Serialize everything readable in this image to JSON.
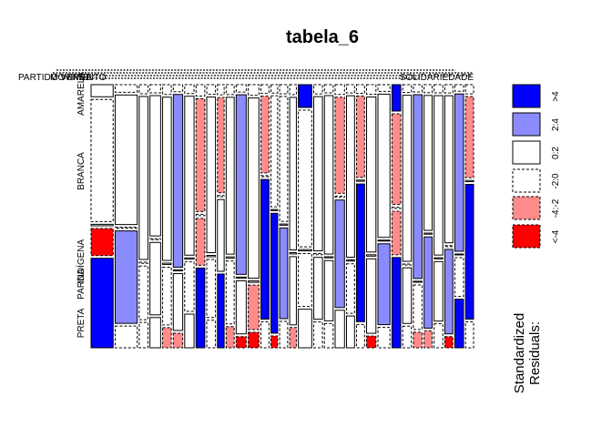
{
  "chart_data": {
    "type": "mosaic",
    "title": "tabela_6",
    "row_labels": [
      "AMARELA",
      "BRANCA",
      "INDÍGENA",
      "PARDA",
      "PRETA"
    ],
    "col_labels_visible": [
      "PARTIDO VERDE",
      "MOVIMENTO",
      "SOLIDARIEDADE"
    ],
    "row_proportions": [
      0.04,
      0.58,
      0.005,
      0.25,
      0.125
    ],
    "legend": {
      "title_line1": "Standardized",
      "title_line2": "Residuals:",
      "ranges": [
        ">4",
        "2:4",
        "0:2",
        "-2:0",
        "-4:-2",
        "<-4"
      ],
      "colors": [
        "#0000ff",
        "#8b8bff",
        "#ffffff",
        "#ffffff",
        "#ff8b8b",
        "#ff0000"
      ],
      "dashed": [
        false,
        false,
        false,
        true,
        true,
        true
      ]
    },
    "columns": [
      {
        "w": 0.033,
        "r": [
          0.5,
          -1.5,
          0.3,
          -5.2,
          5.3
        ]
      },
      {
        "w": 0.033,
        "r": [
          -0.5,
          0.4,
          -0.8,
          3.2,
          -1.0
        ]
      },
      {
        "w": 0.013,
        "r": [
          -0.2,
          1.0,
          -0.3,
          -0.5,
          -0.8
        ]
      },
      {
        "w": 0.016,
        "r": [
          -0.4,
          0.5,
          -0.3,
          1.5,
          0.5
        ]
      },
      {
        "w": 0.013,
        "r": [
          -0.2,
          0.6,
          0.1,
          -0.5,
          -2.5
        ]
      },
      {
        "w": 0.014,
        "r": [
          -0.3,
          2.6,
          0.2,
          1.1,
          -2.6
        ]
      },
      {
        "w": 0.014,
        "r": [
          -0.2,
          1.0,
          0.5,
          -0.8,
          0.9
        ]
      },
      {
        "w": 0.013,
        "r": [
          -0.1,
          -2.2,
          -0.2,
          -2.4,
          4.4
        ]
      },
      {
        "w": 0.013,
        "r": [
          -0.1,
          0.5,
          0.4,
          -0.3,
          -0.6
        ]
      },
      {
        "w": 0.01,
        "r": [
          -0.2,
          -2.6,
          -0.3,
          0.5,
          4.5
        ]
      },
      {
        "w": 0.012,
        "r": [
          -0.3,
          0.2,
          0.2,
          -0.2,
          -2.4
        ]
      },
      {
        "w": 0.015,
        "r": [
          -0.2,
          2.7,
          0.1,
          0.6,
          -4.2
        ]
      },
      {
        "w": 0.016,
        "r": [
          -0.3,
          0.6,
          0.1,
          -2.5,
          -4.5
        ]
      },
      {
        "w": 0.012,
        "r": [
          -0.2,
          -3.0,
          -0.2,
          5.0,
          -0.5
        ]
      },
      {
        "w": 0.01,
        "r": [
          -0.1,
          -0.6,
          0.1,
          4.5,
          -4.5
        ]
      },
      {
        "w": 0.012,
        "r": [
          -0.1,
          -0.4,
          0.1,
          2.5,
          -0.5
        ]
      },
      {
        "w": 0.01,
        "r": [
          -0.1,
          0.2,
          0.1,
          0.4,
          -2.5
        ]
      },
      {
        "w": 0.02,
        "r": [
          4.4,
          -0.5,
          0.1,
          -1.1,
          1.0
        ]
      },
      {
        "w": 0.013,
        "r": [
          -0.1,
          0.7,
          -0.2,
          0.3,
          -0.7
        ]
      },
      {
        "w": 0.013,
        "r": [
          -0.2,
          1.4,
          0.1,
          0.7,
          -0.5
        ]
      },
      {
        "w": 0.014,
        "r": [
          -0.3,
          -2.5,
          -0.3,
          2.8,
          0.8
        ]
      },
      {
        "w": 0.012,
        "r": [
          -0.4,
          1.2,
          0.2,
          -0.7,
          0.7
        ]
      },
      {
        "w": 0.012,
        "r": [
          -0.2,
          -2.6,
          0.2,
          5.0,
          -1.0
        ]
      },
      {
        "w": 0.014,
        "r": [
          -0.3,
          0.3,
          0.3,
          0.9,
          -5.5
        ]
      },
      {
        "w": 0.018,
        "r": [
          -0.3,
          1.8,
          0.2,
          3.3,
          -0.5
        ]
      },
      {
        "w": 0.013,
        "r": [
          5.0,
          -3.0,
          -0.2,
          -2.4,
          5.5
        ]
      },
      {
        "w": 0.013,
        "r": [
          -0.3,
          1.8,
          -0.1,
          0.4,
          -1.0
        ]
      },
      {
        "w": 0.013,
        "r": [
          -0.3,
          2.8,
          0.2,
          -0.4,
          -2.4
        ]
      },
      {
        "w": 0.012,
        "r": [
          -0.3,
          0.5,
          0.1,
          3.0,
          -2.5
        ]
      },
      {
        "w": 0.013,
        "r": [
          -0.2,
          1.4,
          0.1,
          0.6,
          -0.6
        ]
      },
      {
        "w": 0.012,
        "r": [
          -0.3,
          0.8,
          -0.1,
          2.4,
          -5.0
        ]
      },
      {
        "w": 0.013,
        "r": [
          -0.2,
          2.6,
          0.2,
          -0.5,
          4.6
        ]
      },
      {
        "w": 0.012,
        "r": [
          -0.2,
          -3.0,
          0.2,
          4.5,
          -0.8
        ]
      }
    ]
  }
}
